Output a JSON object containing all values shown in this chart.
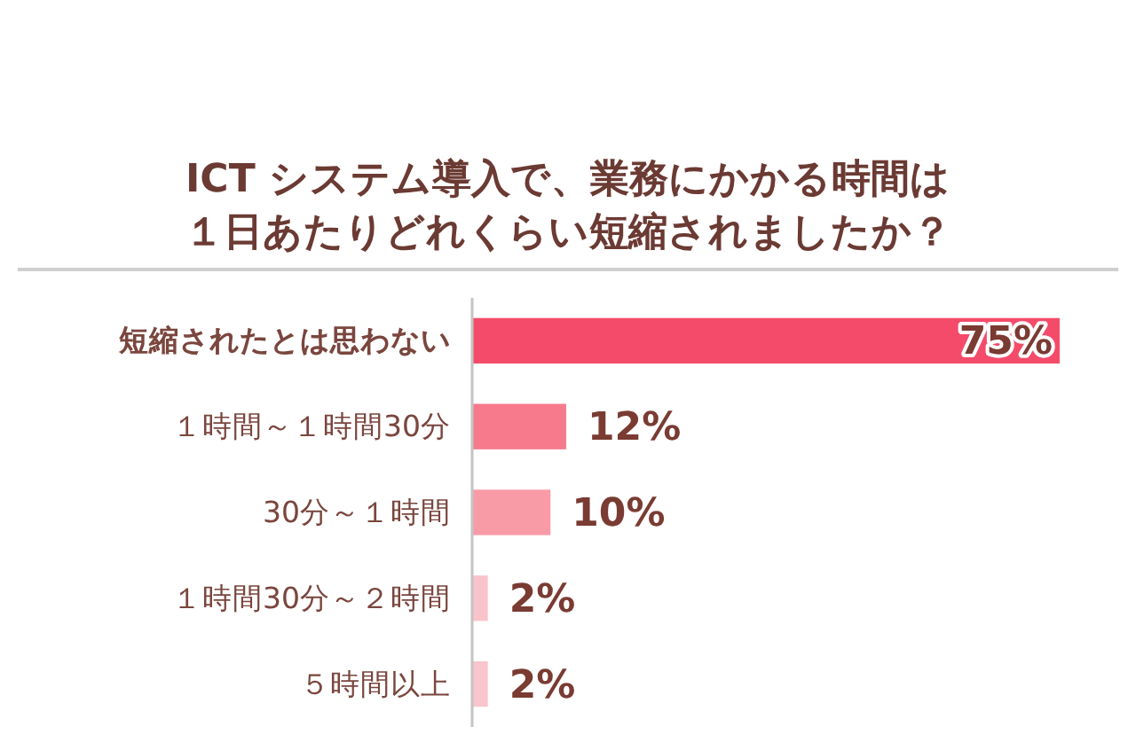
{
  "chart_data": {
    "type": "bar",
    "orientation": "horizontal",
    "title": "ICT システム導入で、業務にかかる時間は１日あたりどれくらい短縮されましたか？",
    "categories": [
      "短縮されたとは思わない",
      "１時間～１時間30分",
      "30分～１時間",
      "１時間30分～２時間",
      "５時間以上"
    ],
    "values": [
      75,
      12,
      10,
      2,
      2
    ],
    "colors": [
      "#f54b6a",
      "#f67a8b",
      "#f89ba7",
      "#f9c3cb",
      "#f9c6cd"
    ],
    "value_labels": [
      "75%",
      "12%",
      "10%",
      "2%",
      "2%"
    ]
  }
}
